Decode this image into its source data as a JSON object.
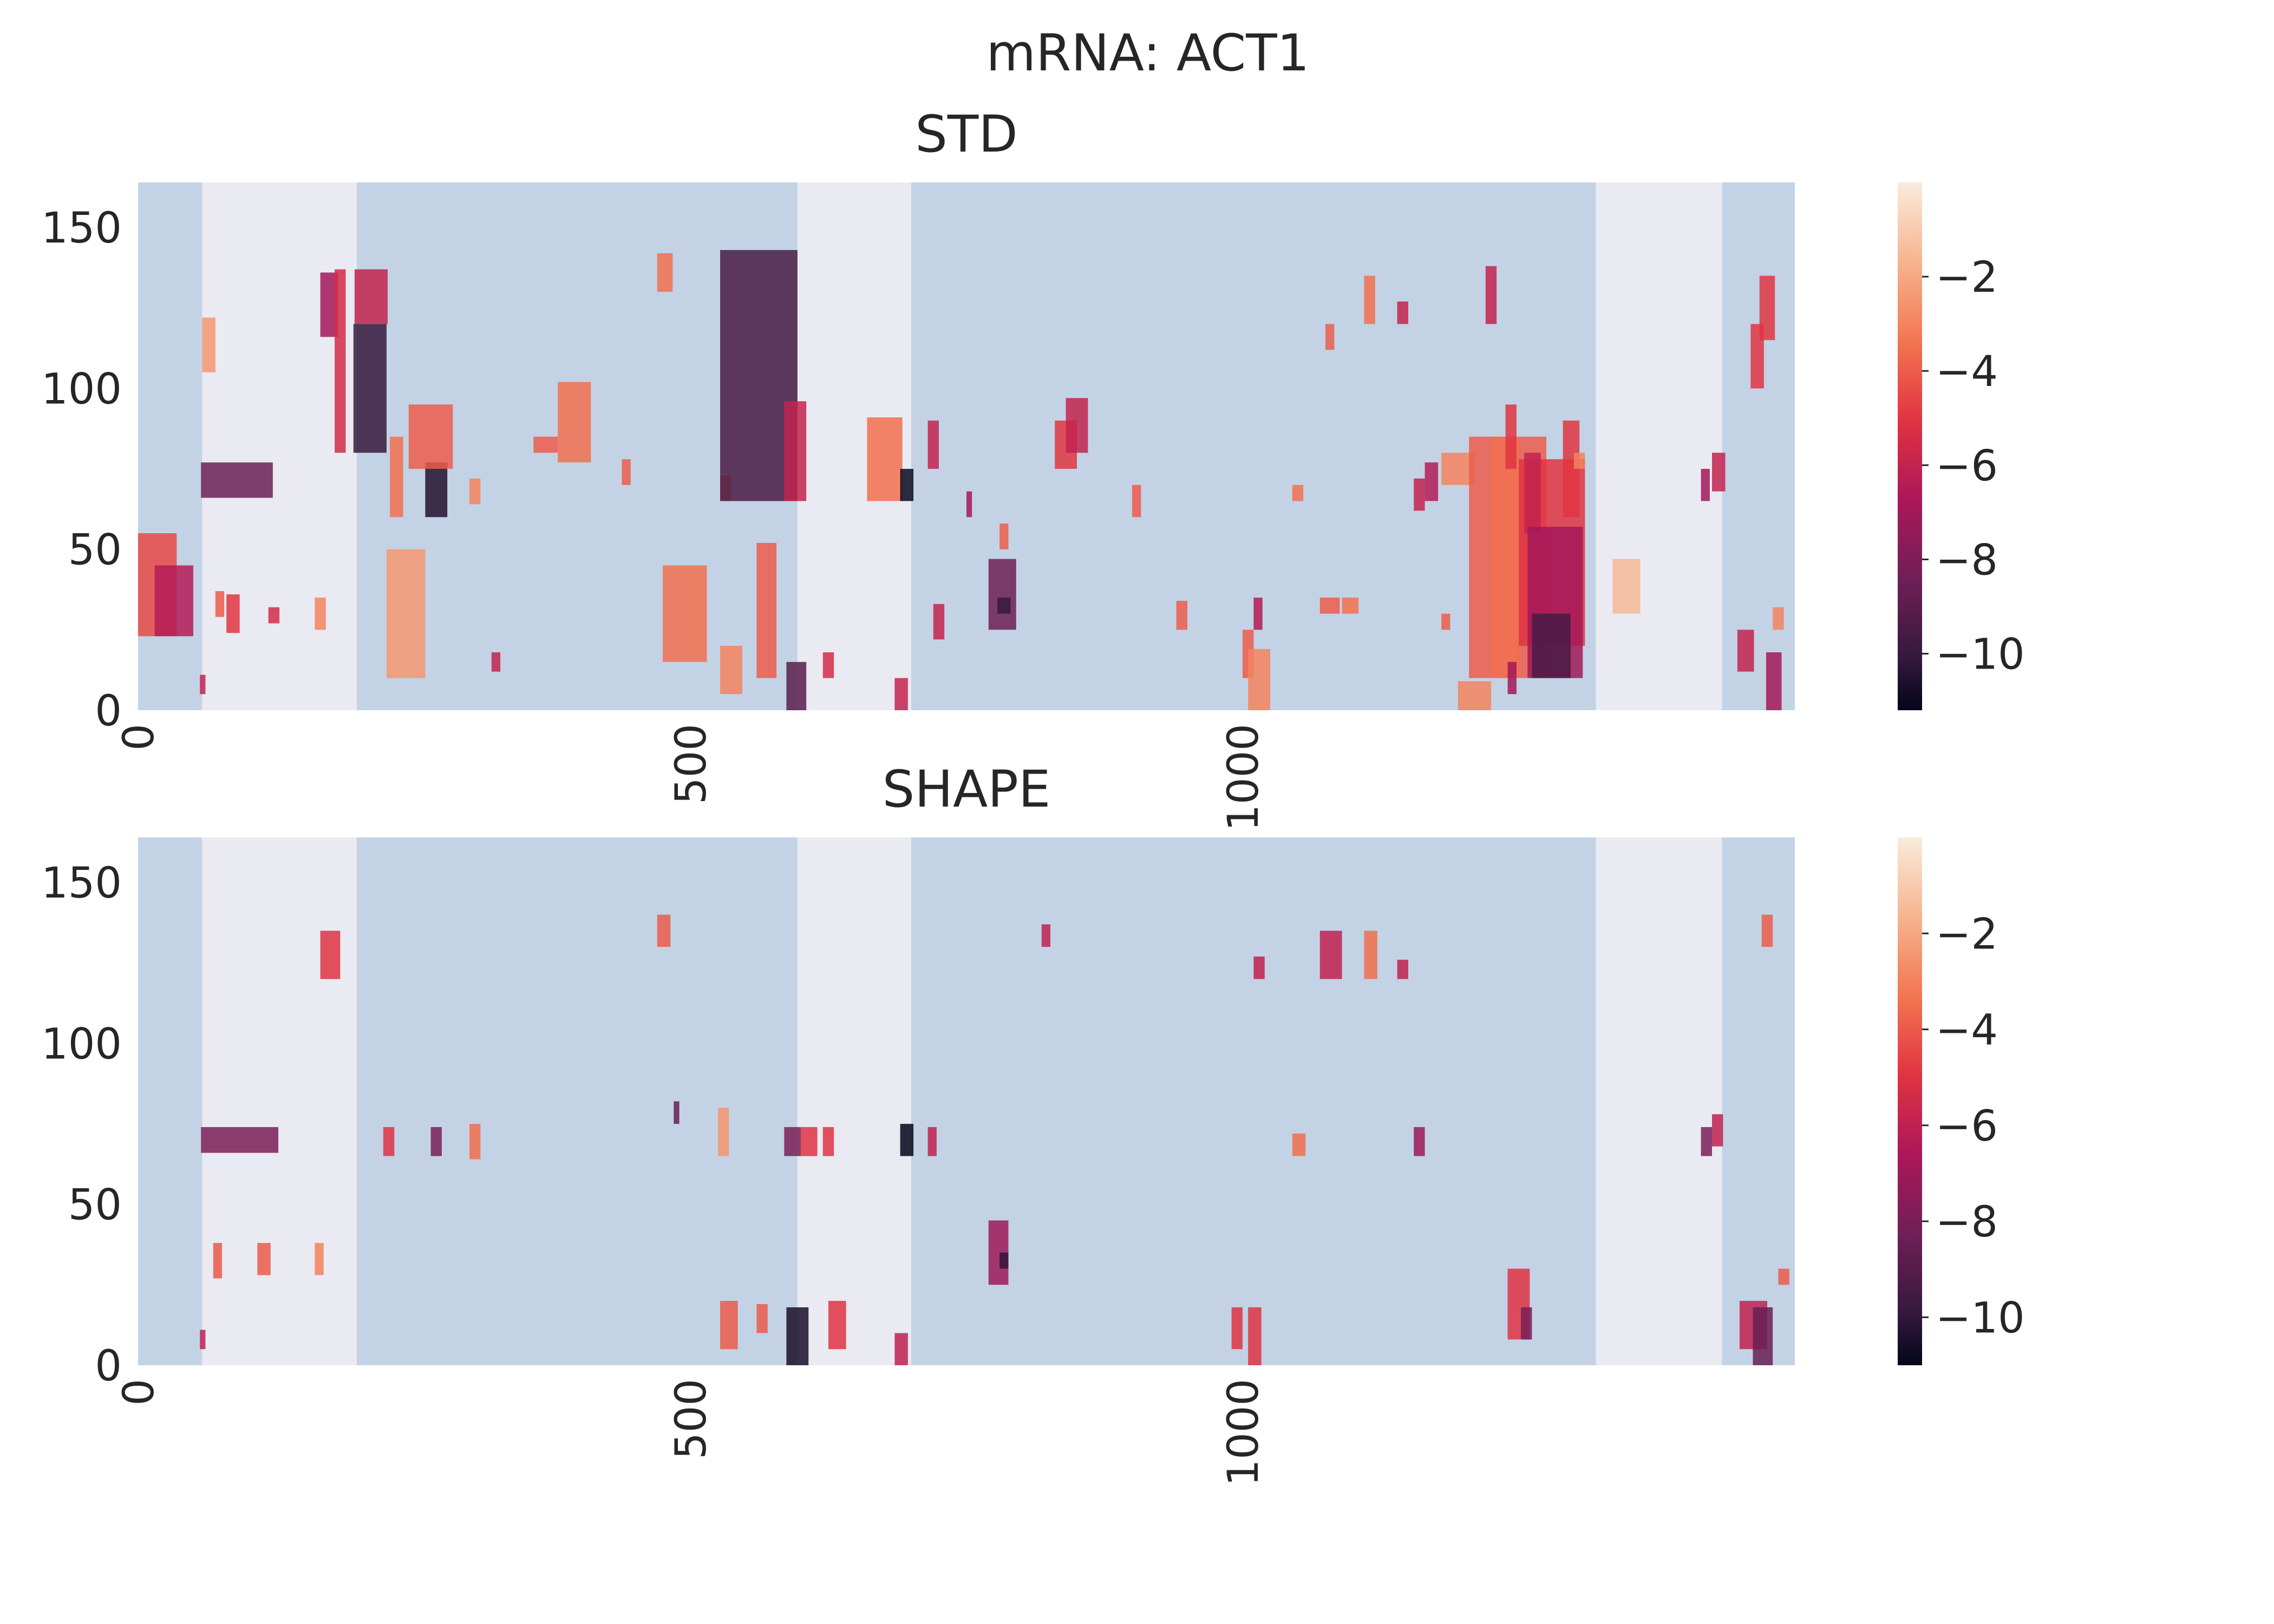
{
  "figure": {
    "title": "mRNA: ACT1",
    "colors": {
      "band_shaded": "#c3d3e5",
      "band_light": "#eaeaf2",
      "tick_text": "#262626"
    }
  },
  "chart_data": [
    {
      "type": "heatmap",
      "title": "STD",
      "xlabel": "",
      "ylabel": "",
      "xlim": [
        0,
        1500
      ],
      "ylim": [
        0,
        164
      ],
      "xticks": [
        0,
        500,
        1000
      ],
      "xtick_labels": [
        "0",
        "500",
        "1000"
      ],
      "yticks": [
        0,
        50,
        100,
        150
      ],
      "ytick_labels": [
        "0",
        "50",
        "100",
        "150"
      ],
      "colorbar": {
        "vmin": -11.2,
        "vmax": 0,
        "ticks": [
          -2,
          -4,
          -6,
          -8,
          -10
        ],
        "tick_labels": [
          "−2",
          "−4",
          "−6",
          "−8",
          "−10"
        ]
      },
      "background_bands": [
        {
          "x0": 0,
          "x1": 58,
          "shade": "dark"
        },
        {
          "x0": 58,
          "x1": 198,
          "shade": "light"
        },
        {
          "x0": 198,
          "x1": 597,
          "shade": "dark"
        },
        {
          "x0": 597,
          "x1": 700,
          "shade": "light"
        },
        {
          "x0": 700,
          "x1": 1320,
          "shade": "dark"
        },
        {
          "x0": 1320,
          "x1": 1434,
          "shade": "light"
        },
        {
          "x0": 1434,
          "x1": 1500,
          "shade": "dark"
        }
      ],
      "cells": [
        [
          0,
          35,
          23,
          55,
          -4.5
        ],
        [
          15,
          35,
          23,
          45,
          -6.5
        ],
        [
          56,
          5,
          5,
          11,
          -6
        ],
        [
          57,
          65,
          66,
          77,
          -8.5
        ],
        [
          58,
          12,
          105,
          122,
          -2.5
        ],
        [
          70,
          8,
          29,
          37,
          -4
        ],
        [
          80,
          12,
          24,
          36,
          -5
        ],
        [
          118,
          10,
          27,
          32,
          -5.5
        ],
        [
          160,
          10,
          25,
          35,
          -3
        ],
        [
          165,
          16,
          116,
          136,
          -7
        ],
        [
          178,
          10,
          80,
          137,
          -5.5
        ],
        [
          195,
          30,
          80,
          120,
          -10
        ],
        [
          196,
          30,
          120,
          137,
          -6
        ],
        [
          225,
          35,
          10,
          50,
          -2.5
        ],
        [
          228,
          12,
          60,
          85,
          -3.5
        ],
        [
          260,
          20,
          60,
          77,
          -10.5
        ],
        [
          245,
          40,
          75,
          95,
          -4
        ],
        [
          300,
          10,
          64,
          72,
          -3
        ],
        [
          320,
          8,
          12,
          18,
          -6
        ],
        [
          358,
          22,
          80,
          85,
          -4
        ],
        [
          380,
          30,
          77,
          102,
          -3.5
        ],
        [
          438,
          8,
          70,
          78,
          -4
        ],
        [
          470,
          14,
          130,
          142,
          -3.5
        ],
        [
          475,
          40,
          15,
          45,
          -3.5
        ],
        [
          527,
          10,
          65,
          73,
          -3.5
        ],
        [
          527,
          70,
          65,
          143,
          -9.5
        ],
        [
          527,
          20,
          5,
          20,
          -3
        ],
        [
          560,
          18,
          10,
          52,
          -4
        ],
        [
          585,
          20,
          65,
          96,
          -6
        ],
        [
          587,
          18,
          0,
          15,
          -9
        ],
        [
          620,
          10,
          10,
          18,
          -5.5
        ],
        [
          660,
          32,
          65,
          91,
          -3.5
        ],
        [
          685,
          12,
          0,
          10,
          -6
        ],
        [
          690,
          12,
          65,
          75,
          -11
        ],
        [
          715,
          10,
          75,
          90,
          -6
        ],
        [
          720,
          10,
          22,
          33,
          -6
        ],
        [
          750,
          5,
          60,
          68,
          -7
        ],
        [
          770,
          25,
          25,
          47,
          -8.5
        ],
        [
          778,
          12,
          30,
          35,
          -10
        ],
        [
          780,
          8,
          50,
          58,
          -4
        ],
        [
          830,
          20,
          75,
          90,
          -5
        ],
        [
          840,
          20,
          80,
          97,
          -6
        ],
        [
          900,
          8,
          60,
          70,
          -4
        ],
        [
          940,
          10,
          25,
          34,
          -4
        ],
        [
          1000,
          10,
          10,
          25,
          -4
        ],
        [
          1005,
          20,
          0,
          19,
          -3
        ],
        [
          1010,
          8,
          25,
          35,
          -6.5
        ],
        [
          1045,
          10,
          65,
          70,
          -3.5
        ],
        [
          1070,
          18,
          30,
          35,
          -4
        ],
        [
          1075,
          8,
          112,
          120,
          -4
        ],
        [
          1090,
          15,
          30,
          35,
          -3.5
        ],
        [
          1110,
          10,
          120,
          135,
          -3.5
        ],
        [
          1140,
          10,
          120,
          127,
          -6
        ],
        [
          1155,
          10,
          62,
          72,
          -6
        ],
        [
          1165,
          12,
          65,
          77,
          -6.5
        ],
        [
          1180,
          30,
          70,
          80,
          -3
        ],
        [
          1180,
          8,
          25,
          30,
          -4
        ],
        [
          1195,
          30,
          0,
          9,
          -3
        ],
        [
          1205,
          70,
          10,
          85,
          -4
        ],
        [
          1220,
          10,
          120,
          138,
          -6
        ],
        [
          1225,
          25,
          10,
          85,
          -3.5
        ],
        [
          1238,
          10,
          75,
          95,
          -5
        ],
        [
          1240,
          8,
          5,
          15,
          -7
        ],
        [
          1250,
          60,
          20,
          78,
          -5
        ],
        [
          1255,
          15,
          55,
          80,
          -6
        ],
        [
          1258,
          50,
          10,
          57,
          -7
        ],
        [
          1262,
          35,
          10,
          30,
          -9.5
        ],
        [
          1290,
          15,
          60,
          90,
          -5
        ],
        [
          1300,
          10,
          75,
          80,
          -3
        ],
        [
          1335,
          25,
          30,
          47,
          -1.5
        ],
        [
          1415,
          8,
          65,
          75,
          -7
        ],
        [
          1425,
          12,
          68,
          80,
          -6
        ],
        [
          1448,
          15,
          12,
          25,
          -6
        ],
        [
          1460,
          12,
          100,
          120,
          -5
        ],
        [
          1468,
          14,
          115,
          135,
          -5
        ],
        [
          1474,
          14,
          0,
          18,
          -7
        ],
        [
          1480,
          10,
          25,
          32,
          -3
        ]
      ]
    },
    {
      "type": "heatmap",
      "title": "SHAPE",
      "xlabel": "",
      "ylabel": "",
      "xlim": [
        0,
        1500
      ],
      "ylim": [
        0,
        164
      ],
      "xticks": [
        0,
        500,
        1000
      ],
      "xtick_labels": [
        "0",
        "500",
        "1000"
      ],
      "yticks": [
        0,
        50,
        100,
        150
      ],
      "ytick_labels": [
        "0",
        "50",
        "100",
        "150"
      ],
      "colorbar": {
        "vmin": -11,
        "vmax": 0,
        "ticks": [
          -2,
          -4,
          -6,
          -8,
          -10
        ],
        "tick_labels": [
          "−2",
          "−4",
          "−6",
          "−8",
          "−10"
        ]
      },
      "background_bands": [
        {
          "x0": 0,
          "x1": 58,
          "shade": "dark"
        },
        {
          "x0": 58,
          "x1": 198,
          "shade": "light"
        },
        {
          "x0": 198,
          "x1": 597,
          "shade": "dark"
        },
        {
          "x0": 597,
          "x1": 700,
          "shade": "light"
        },
        {
          "x0": 700,
          "x1": 1320,
          "shade": "dark"
        },
        {
          "x0": 1320,
          "x1": 1434,
          "shade": "light"
        },
        {
          "x0": 1434,
          "x1": 1500,
          "shade": "dark"
        }
      ],
      "cells": [
        [
          56,
          5,
          5,
          11,
          -6
        ],
        [
          57,
          70,
          66,
          74,
          -8
        ],
        [
          68,
          8,
          27,
          38,
          -4
        ],
        [
          108,
          12,
          28,
          38,
          -4
        ],
        [
          160,
          8,
          28,
          38,
          -3
        ],
        [
          165,
          18,
          120,
          135,
          -5
        ],
        [
          222,
          10,
          65,
          74,
          -5
        ],
        [
          265,
          10,
          65,
          74,
          -8
        ],
        [
          300,
          10,
          64,
          75,
          -3.5
        ],
        [
          470,
          12,
          130,
          140,
          -4
        ],
        [
          485,
          5,
          75,
          82,
          -8.5
        ],
        [
          525,
          10,
          65,
          80,
          -2.5
        ],
        [
          527,
          16,
          5,
          20,
          -4
        ],
        [
          560,
          10,
          10,
          19,
          -4
        ],
        [
          585,
          15,
          65,
          74,
          -8
        ],
        [
          587,
          20,
          0,
          18,
          -10.5
        ],
        [
          600,
          15,
          65,
          74,
          -5
        ],
        [
          620,
          10,
          65,
          74,
          -5
        ],
        [
          625,
          16,
          5,
          20,
          -5
        ],
        [
          685,
          12,
          0,
          10,
          -6
        ],
        [
          690,
          12,
          65,
          75,
          -11
        ],
        [
          715,
          8,
          65,
          74,
          -6
        ],
        [
          770,
          18,
          25,
          45,
          -7
        ],
        [
          780,
          8,
          30,
          35,
          -10
        ],
        [
          818,
          8,
          130,
          137,
          -6
        ],
        [
          990,
          10,
          5,
          18,
          -5
        ],
        [
          1005,
          12,
          0,
          18,
          -5
        ],
        [
          1010,
          10,
          120,
          127,
          -6
        ],
        [
          1045,
          12,
          65,
          72,
          -3.5
        ],
        [
          1070,
          20,
          120,
          135,
          -6
        ],
        [
          1110,
          12,
          120,
          135,
          -3.5
        ],
        [
          1140,
          10,
          120,
          126,
          -6
        ],
        [
          1155,
          10,
          65,
          74,
          -7
        ],
        [
          1240,
          20,
          8,
          30,
          -5
        ],
        [
          1252,
          10,
          8,
          18,
          -8
        ],
        [
          1415,
          10,
          65,
          74,
          -8
        ],
        [
          1425,
          10,
          68,
          78,
          -6
        ],
        [
          1450,
          25,
          5,
          20,
          -6
        ],
        [
          1462,
          18,
          0,
          18,
          -8.5
        ],
        [
          1470,
          10,
          130,
          140,
          -4
        ],
        [
          1485,
          10,
          25,
          30,
          -4
        ]
      ]
    }
  ]
}
